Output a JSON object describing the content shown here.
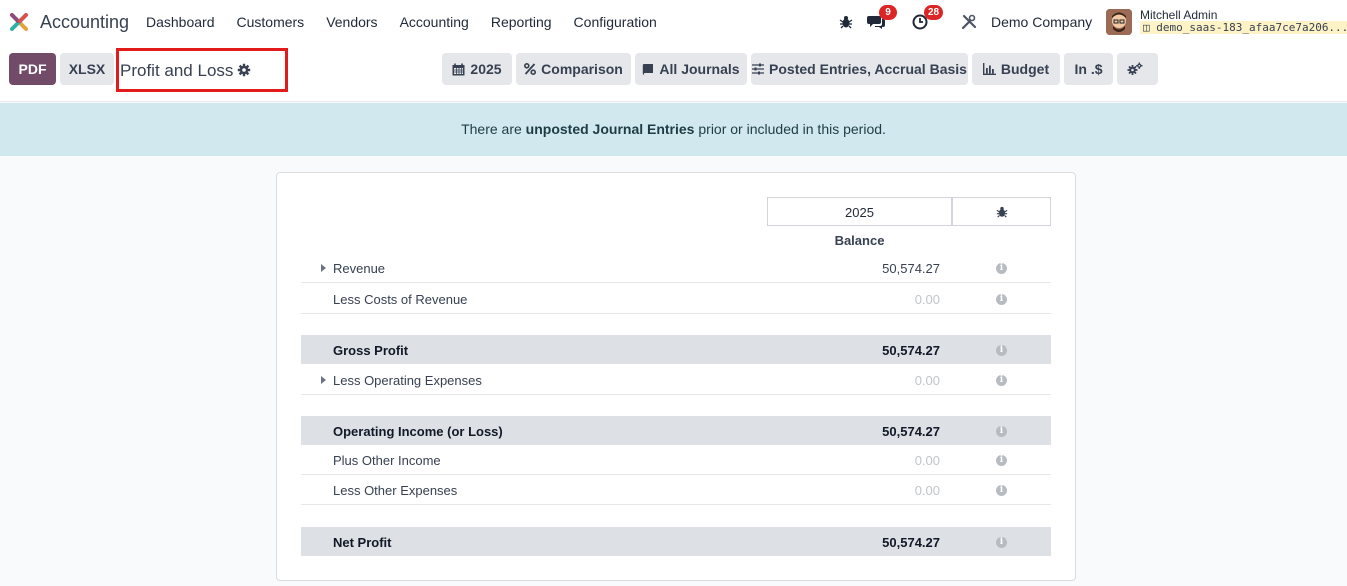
{
  "navbar": {
    "app_name": "Accounting",
    "menu": [
      "Dashboard",
      "Customers",
      "Vendors",
      "Accounting",
      "Reporting",
      "Configuration"
    ],
    "messages_count": "9",
    "activities_count": "28",
    "company": "Demo Company",
    "user_name": "Mitchell Admin",
    "database": "demo_saas-183_afaa7ce7a206..."
  },
  "control_panel": {
    "pdf_label": "PDF",
    "xlsx_label": "XLSX",
    "report_title": "Profit and Loss",
    "filters": {
      "date": "2025",
      "comparison": "Comparison",
      "journals": "All Journals",
      "entries": "Posted Entries, Accrual Basis",
      "budget": "Budget",
      "currency": "In .$"
    }
  },
  "alert": {
    "prefix": "There are ",
    "bold": "unposted Journal Entries",
    "suffix": " prior or included in this period."
  },
  "report": {
    "column_period": "2025",
    "column_label": "Balance",
    "rows": [
      {
        "label": "Revenue",
        "value": "50,574.27"
      },
      {
        "label": "Less Costs of Revenue",
        "value": "0.00"
      },
      {
        "label": "Gross Profit",
        "value": "50,574.27"
      },
      {
        "label": "Less Operating Expenses",
        "value": "0.00"
      },
      {
        "label": "Operating Income (or Loss)",
        "value": "50,574.27"
      },
      {
        "label": "Plus Other Income",
        "value": "0.00"
      },
      {
        "label": "Less Other Expenses",
        "value": "0.00"
      },
      {
        "label": "Net Profit",
        "value": "50,574.27"
      }
    ]
  },
  "colors": {
    "brand": "#714b67",
    "alert_bg": "#d1e9ee",
    "badge": "#dc2626",
    "total_row_bg": "#dde0e4"
  }
}
